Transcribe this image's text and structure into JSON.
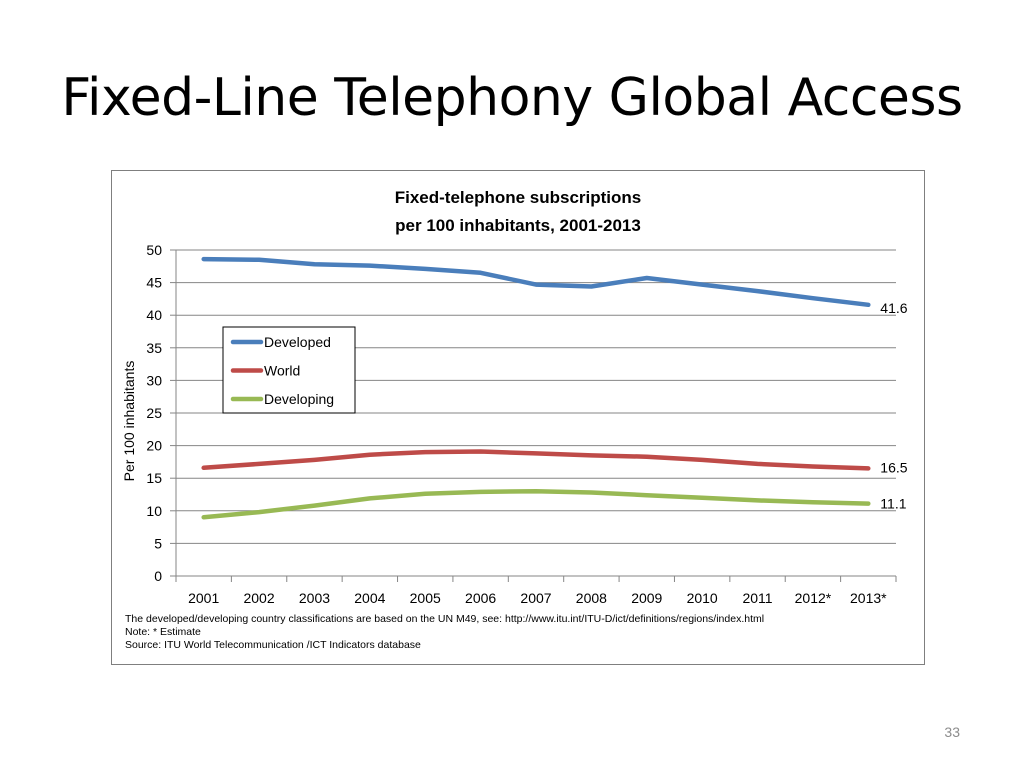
{
  "slide": {
    "title": "Fixed-Line Telephony Global Access",
    "page_number": "33"
  },
  "chart_data": {
    "type": "line",
    "title": [
      "Fixed-telephone subscriptions",
      "per 100 inhabitants, 2001-2013"
    ],
    "xlabel": "",
    "ylabel": "Per 100 inhabitants",
    "ylim": [
      0,
      50
    ],
    "yticks": [
      0,
      5,
      10,
      15,
      20,
      25,
      30,
      35,
      40,
      45,
      50
    ],
    "grid": true,
    "legend_position": "upper-left",
    "categories": [
      "2001",
      "2002",
      "2003",
      "2004",
      "2005",
      "2006",
      "2007",
      "2008",
      "2009",
      "2010",
      "2011",
      "2012*",
      "2013*"
    ],
    "series": [
      {
        "name": "Developed",
        "color": "#4a7ebb",
        "values": [
          48.6,
          48.5,
          47.8,
          47.6,
          47.1,
          46.5,
          44.7,
          44.4,
          45.7,
          44.7,
          43.7,
          42.6,
          41.6
        ],
        "end_label": "41.6"
      },
      {
        "name": "World",
        "color": "#be4b48",
        "values": [
          16.6,
          17.2,
          17.8,
          18.6,
          19.0,
          19.1,
          18.8,
          18.5,
          18.3,
          17.8,
          17.2,
          16.8,
          16.5
        ],
        "end_label": "16.5"
      },
      {
        "name": "Developing",
        "color": "#98b954",
        "values": [
          9.0,
          9.8,
          10.8,
          11.9,
          12.6,
          12.9,
          13.0,
          12.8,
          12.4,
          12.0,
          11.6,
          11.3,
          11.1
        ],
        "end_label": "11.1"
      }
    ],
    "legend_order": [
      "Developed",
      "World",
      "Developing"
    ],
    "gridline_color": "#868686",
    "axis_color": "#868686"
  },
  "notes": {
    "classification": "The developed/developing country classifications are based on the UN M49, see: http://www.itu.int/ITU-D/ict/definitions/regions/index.html",
    "estimate": "Note: * Estimate",
    "source": "Source:  ITU World Telecommunication /ICT Indicators database"
  }
}
